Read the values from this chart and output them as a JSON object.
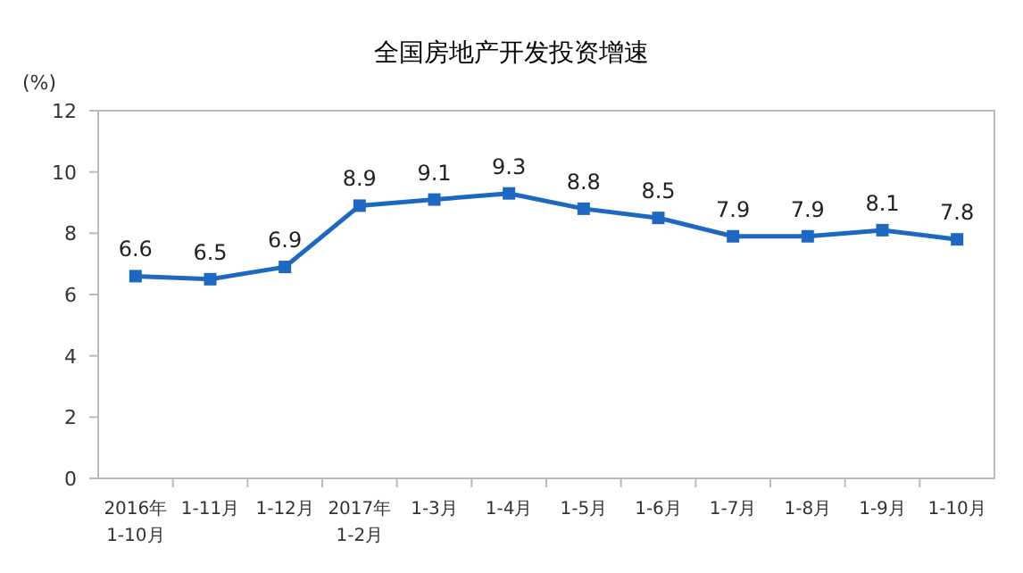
{
  "chart_data": {
    "type": "line",
    "title": "全国房地产开发投资增速",
    "ylabel": "(%)",
    "categories": [
      "2016年\n1-10月",
      "1-11月",
      "1-12月",
      "2017年\n1-2月",
      "1-3月",
      "1-4月",
      "1-5月",
      "1-6月",
      "1-7月",
      "1-8月",
      "1-9月",
      "1-10月"
    ],
    "series": [
      {
        "color": "#1f68c1",
        "values": [
          6.6,
          6.5,
          6.9,
          8.9,
          9.1,
          9.3,
          8.8,
          8.5,
          7.9,
          7.9,
          8.1,
          7.8
        ]
      }
    ],
    "ylim": [
      0,
      12
    ],
    "yticks": [
      0,
      2,
      4,
      6,
      8,
      10,
      12
    ],
    "grid": false,
    "marker": "square",
    "line_style": "solid",
    "data_labels": true
  }
}
